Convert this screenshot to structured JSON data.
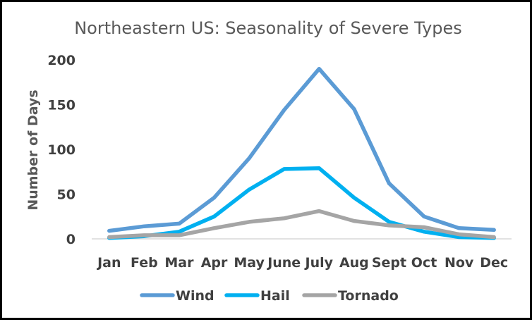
{
  "chart_data": {
    "type": "line",
    "title": "Northeastern US: Seasonality of Severe Types",
    "xlabel": "",
    "ylabel": "Number of Days",
    "categories": [
      "Jan",
      "Feb",
      "Mar",
      "Apr",
      "May",
      "June",
      "July",
      "Aug",
      "Sept",
      "Oct",
      "Nov",
      "Dec"
    ],
    "ylim": [
      0,
      200
    ],
    "yticks": [
      "0",
      "50",
      "100",
      "150",
      "200"
    ],
    "grid": false,
    "legend_position": "bottom",
    "series": [
      {
        "name": "Wind",
        "color": "#5B9BD5",
        "values": [
          9,
          14,
          17,
          46,
          90,
          144,
          190,
          145,
          62,
          25,
          12,
          10
        ]
      },
      {
        "name": "Hail",
        "color": "#00B0F0",
        "values": [
          1,
          3,
          8,
          25,
          55,
          78,
          79,
          46,
          19,
          8,
          2,
          1
        ]
      },
      {
        "name": "Tornado",
        "color": "#A5A5A5",
        "values": [
          2,
          4,
          4,
          12,
          19,
          23,
          31,
          20,
          15,
          13,
          5,
          2
        ]
      }
    ]
  }
}
